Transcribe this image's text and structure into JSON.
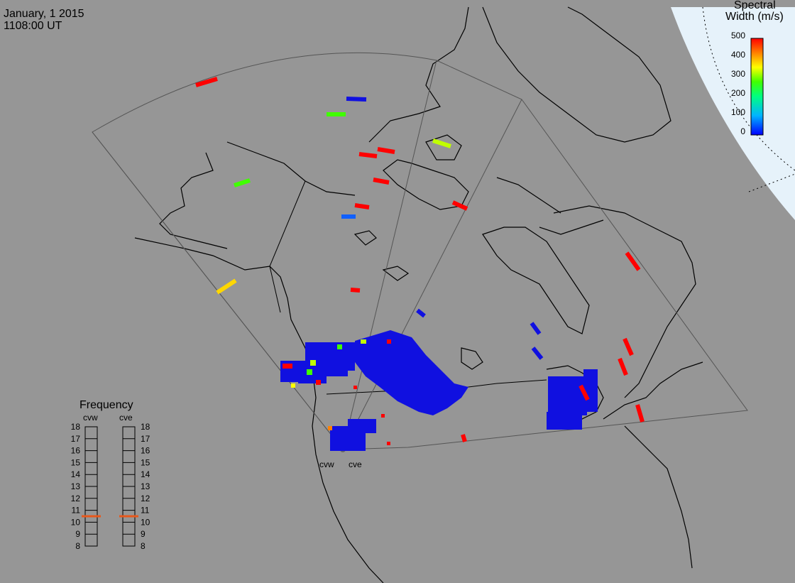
{
  "header": {
    "date": "January, 1 2015",
    "time": "1108:00 UT"
  },
  "colorbar": {
    "title_line1": "Spectral",
    "title_line2": "Width (m/s)",
    "ticks": [
      "500",
      "400",
      "300",
      "200",
      "100",
      "0"
    ],
    "value_range": [
      0,
      500
    ]
  },
  "radars": {
    "west_label": "cvw",
    "east_label": "cve"
  },
  "frequency_panel": {
    "title": "Frequency",
    "col_left": "cvw",
    "col_right": "cve",
    "ticks": [
      "18",
      "17",
      "16",
      "15",
      "14",
      "13",
      "12",
      "11",
      "10",
      "9",
      "8"
    ],
    "cvw_mhz": 10.5,
    "cve_mhz": 10.5,
    "marker_color": "#e8581c"
  },
  "colors": {
    "background": "#969696",
    "polar_region": "#e6f2fa",
    "coast_lines": "#000000",
    "low_width": "#1010e0"
  }
}
